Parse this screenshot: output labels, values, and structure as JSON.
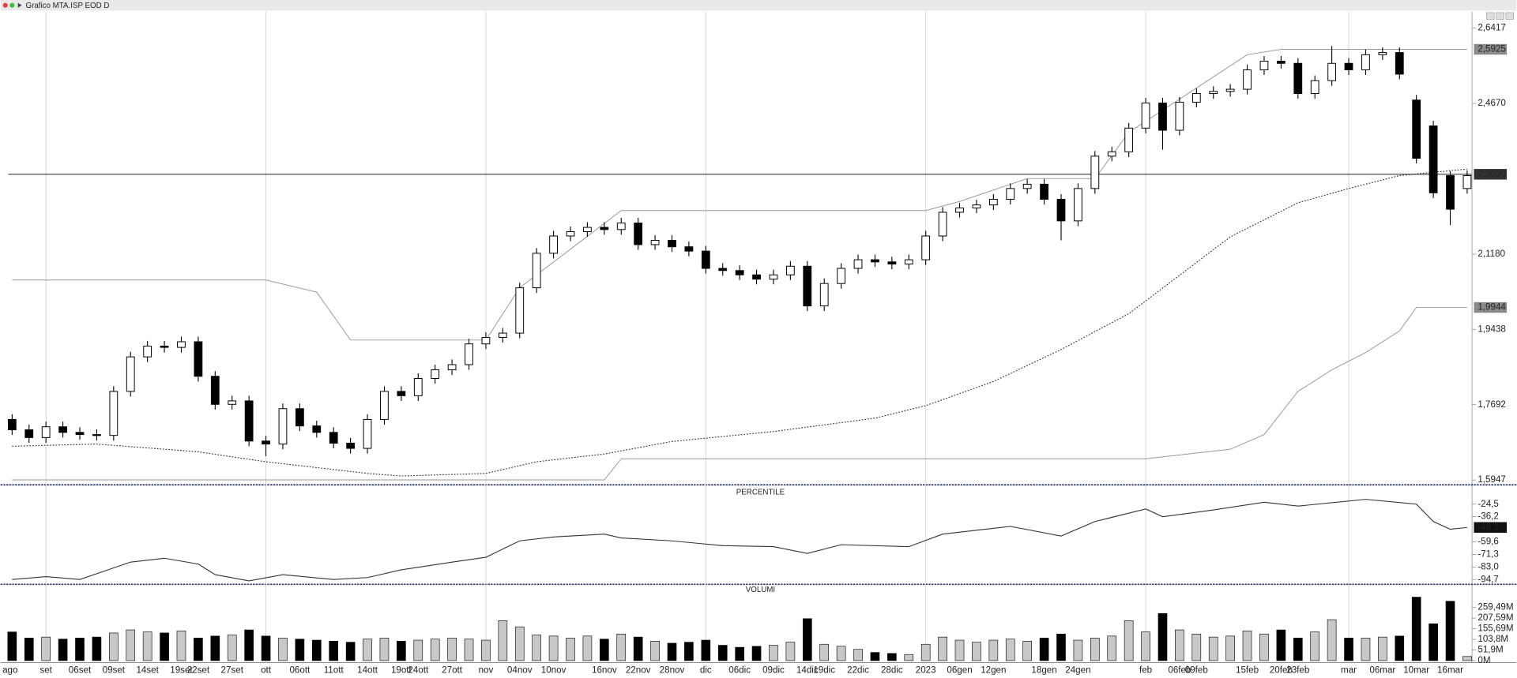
{
  "chart_data": {
    "type": "candlestick",
    "title": "Grafico MTA.ISP EOD D",
    "categories": [
      "ago",
      null,
      "set",
      null,
      "06set",
      null,
      "09set",
      null,
      "14set",
      null,
      "19set",
      "22set",
      null,
      "27set",
      null,
      "ott",
      null,
      "06ott",
      null,
      "11ott",
      null,
      "14ott",
      null,
      "19ott",
      "24ott",
      null,
      "27ott",
      null,
      "nov",
      null,
      "04nov",
      null,
      "10nov",
      null,
      null,
      "16nov",
      null,
      "22nov",
      null,
      "28nov",
      null,
      "dic",
      null,
      "06dic",
      null,
      "09dic",
      null,
      "14dic",
      "19dic",
      null,
      "22dic",
      null,
      "28dic",
      null,
      "2023",
      null,
      "06gen",
      null,
      "12gen",
      null,
      null,
      "18gen",
      null,
      "24gen",
      null,
      null,
      null,
      "feb",
      null,
      "06feb",
      "09feb",
      null,
      null,
      "15feb",
      null,
      "20feb",
      "23feb",
      null,
      null,
      "mar",
      null,
      "06mar",
      null,
      "10mar",
      null,
      "16mar",
      null
    ],
    "open": [
      1.735,
      1.711,
      1.693,
      1.718,
      1.705,
      1.7,
      1.698,
      1.8,
      1.88,
      1.905,
      1.902,
      1.915,
      1.835,
      1.77,
      1.778,
      1.685,
      1.678,
      1.76,
      1.72,
      1.705,
      1.68,
      1.668,
      1.735,
      1.8,
      1.79,
      1.83,
      1.85,
      1.862,
      1.91,
      1.925,
      1.935,
      2.04,
      2.12,
      2.16,
      2.17,
      2.18,
      2.175,
      2.19,
      2.14,
      2.15,
      2.135,
      2.125,
      2.085,
      2.08,
      2.07,
      2.06,
      2.07,
      2.09,
      1.998,
      2.05,
      2.085,
      2.105,
      2.1,
      2.095,
      2.105,
      2.16,
      2.215,
      2.225,
      2.232,
      2.245,
      2.27,
      2.28,
      2.245,
      2.195,
      2.27,
      2.345,
      2.355,
      2.41,
      2.468,
      2.405,
      2.47,
      2.49,
      2.495,
      2.5,
      2.545,
      2.565,
      2.56,
      2.49,
      2.52,
      2.56,
      2.545,
      2.58,
      2.585,
      2.475,
      2.415,
      2.3,
      2.27
    ],
    "high": [
      1.747,
      1.723,
      1.73,
      1.73,
      1.717,
      1.712,
      1.812,
      1.892,
      1.917,
      1.917,
      1.927,
      1.927,
      1.847,
      1.79,
      1.79,
      1.697,
      1.772,
      1.772,
      1.732,
      1.717,
      1.692,
      1.747,
      1.812,
      1.812,
      1.842,
      1.862,
      1.874,
      1.922,
      1.937,
      1.947,
      2.052,
      2.132,
      2.172,
      2.182,
      2.192,
      2.192,
      2.202,
      2.202,
      2.162,
      2.162,
      2.147,
      2.137,
      2.097,
      2.092,
      2.082,
      2.082,
      2.102,
      2.102,
      2.062,
      2.097,
      2.117,
      2.117,
      2.112,
      2.117,
      2.172,
      2.227,
      2.237,
      2.244,
      2.257,
      2.282,
      2.292,
      2.292,
      2.257,
      2.282,
      2.357,
      2.367,
      2.422,
      2.48,
      2.48,
      2.482,
      2.502,
      2.507,
      2.512,
      2.557,
      2.577,
      2.577,
      2.572,
      2.532,
      2.6,
      2.572,
      2.592,
      2.597,
      2.597,
      2.487,
      2.427,
      2.31,
      2.312
    ],
    "low": [
      1.699,
      1.681,
      1.681,
      1.693,
      1.688,
      1.686,
      1.686,
      1.788,
      1.868,
      1.89,
      1.89,
      1.823,
      1.758,
      1.758,
      1.673,
      1.65,
      1.666,
      1.708,
      1.693,
      1.668,
      1.656,
      1.656,
      1.723,
      1.778,
      1.778,
      1.818,
      1.838,
      1.85,
      1.898,
      1.913,
      1.923,
      2.028,
      2.108,
      2.148,
      2.158,
      2.163,
      2.163,
      2.128,
      2.128,
      2.123,
      2.113,
      2.073,
      2.068,
      2.058,
      2.048,
      2.048,
      2.058,
      1.986,
      1.986,
      2.038,
      2.073,
      2.088,
      2.083,
      2.083,
      2.093,
      2.148,
      2.203,
      2.213,
      2.22,
      2.233,
      2.258,
      2.233,
      2.15,
      2.183,
      2.258,
      2.333,
      2.343,
      2.398,
      2.36,
      2.393,
      2.458,
      2.478,
      2.483,
      2.488,
      2.533,
      2.548,
      2.478,
      2.478,
      2.508,
      2.533,
      2.533,
      2.568,
      2.523,
      2.328,
      2.248,
      2.185,
      2.258
    ],
    "close": [
      1.711,
      1.693,
      1.718,
      1.705,
      1.7,
      1.698,
      1.8,
      1.88,
      1.905,
      1.902,
      1.915,
      1.835,
      1.77,
      1.778,
      1.685,
      1.678,
      1.76,
      1.72,
      1.705,
      1.68,
      1.668,
      1.735,
      1.8,
      1.79,
      1.83,
      1.85,
      1.862,
      1.91,
      1.925,
      1.935,
      2.04,
      2.12,
      2.16,
      2.17,
      2.18,
      2.175,
      2.19,
      2.14,
      2.15,
      2.135,
      2.125,
      2.085,
      2.08,
      2.07,
      2.06,
      2.07,
      2.09,
      1.998,
      2.05,
      2.085,
      2.105,
      2.1,
      2.095,
      2.105,
      2.16,
      2.215,
      2.225,
      2.232,
      2.245,
      2.27,
      2.28,
      2.245,
      2.195,
      2.27,
      2.345,
      2.355,
      2.41,
      2.468,
      2.405,
      2.47,
      2.49,
      2.495,
      2.5,
      2.545,
      2.565,
      2.56,
      2.49,
      2.52,
      2.56,
      2.545,
      2.58,
      2.585,
      2.535,
      2.34,
      2.26,
      2.222,
      2.3
    ],
    "up_color": "#ffffff",
    "down_color": "#000000",
    "ylim": [
      1.588,
      2.662
    ],
    "yticks": [
      {
        "value": 2.6417,
        "label": "2,6417"
      },
      {
        "value": 2.467,
        "label": "2,4670"
      },
      {
        "value": 2.118,
        "label": "2,1180"
      },
      {
        "value": 1.9438,
        "label": "1,9438"
      },
      {
        "value": 1.7692,
        "label": "1,7692"
      },
      {
        "value": 1.5947,
        "label": "1,5947"
      }
    ],
    "price_line": {
      "value": 2.303,
      "label": "2,3030"
    },
    "level_labels": [
      {
        "value": 2.5925,
        "label": "2,5925"
      },
      {
        "value": 1.9944,
        "label": "1,9944"
      }
    ],
    "bands": [
      {
        "color": "#999999",
        "x": [
          0,
          15,
          18,
          20,
          28,
          30,
          36,
          54,
          56,
          60,
          64,
          66,
          73,
          75,
          86
        ],
        "values": [
          2.058,
          2.058,
          2.03,
          1.919,
          1.919,
          2.04,
          2.219,
          2.219,
          2.24,
          2.293,
          2.293,
          2.4,
          2.58,
          2.5925,
          2.5925
        ]
      },
      {
        "color": "#999999",
        "x": [
          0,
          35,
          36,
          67,
          72,
          74,
          76,
          78,
          80,
          82,
          83,
          86
        ],
        "values": [
          1.595,
          1.595,
          1.644,
          1.644,
          1.666,
          1.7,
          1.8,
          1.85,
          1.89,
          1.94,
          1.9944,
          1.9944
        ]
      }
    ],
    "ma": {
      "color": "#333333",
      "x": [
        0,
        5,
        11,
        15,
        21,
        23,
        28,
        31,
        35,
        39,
        45,
        51,
        54,
        58,
        62,
        66,
        69,
        72,
        76,
        79,
        82,
        86
      ],
      "values": [
        1.673,
        1.678,
        1.66,
        1.637,
        1.61,
        1.604,
        1.61,
        1.637,
        1.655,
        1.684,
        1.707,
        1.738,
        1.767,
        1.823,
        1.897,
        1.98,
        2.069,
        2.158,
        2.237,
        2.27,
        2.3,
        2.315
      ]
    },
    "percentile": {
      "title": "PERCENTILE",
      "color": "#333333",
      "x": [
        0,
        2,
        4,
        7,
        9,
        11,
        12,
        14,
        16,
        19,
        21,
        23,
        26,
        28,
        30,
        32,
        35,
        36,
        39,
        42,
        45,
        47,
        49,
        53,
        55,
        59,
        62,
        64,
        67,
        68,
        71,
        74,
        76,
        80,
        83,
        84,
        85,
        86
      ],
      "values": [
        -94.7,
        -92.0,
        -94.7,
        -78.5,
        -74.9,
        -80.3,
        -90.2,
        -96.0,
        -90.2,
        -94.7,
        -92.9,
        -85.7,
        -78.5,
        -74.0,
        -58.7,
        -55.1,
        -52.4,
        -56.0,
        -58.7,
        -63.2,
        -64.1,
        -70.4,
        -62.3,
        -64.1,
        -52.4,
        -45.2,
        -54.2,
        -40.7,
        -29.0,
        -36.2,
        -29.9,
        -22.7,
        -26.3,
        -20.0,
        -24.5,
        -40.7,
        -47.9,
        -46.2
      ],
      "ylim": [
        -98.3,
        -18.2
      ],
      "yticks": [
        {
          "value": -24.5,
          "label": "-24,5"
        },
        {
          "value": -36.2,
          "label": "-36,2"
        },
        {
          "value": -59.6,
          "label": "-59,6"
        },
        {
          "value": -71.3,
          "label": "-71,3"
        },
        {
          "value": -83.0,
          "label": "-83,0"
        },
        {
          "value": -94.7,
          "label": "-94,7"
        }
      ],
      "last": {
        "value": -46.2,
        "label": "-46,2"
      }
    },
    "volume": {
      "title": "VOLUMI",
      "up_color": "#c8c8c8",
      "down_color": "#000000",
      "values": [
        140,
        110,
        115,
        105,
        110,
        115,
        135,
        150,
        140,
        135,
        145,
        110,
        120,
        125,
        150,
        120,
        110,
        105,
        100,
        95,
        90,
        105,
        110,
        95,
        100,
        105,
        110,
        105,
        100,
        195,
        165,
        125,
        120,
        110,
        120,
        105,
        130,
        115,
        95,
        85,
        90,
        100,
        75,
        65,
        70,
        75,
        90,
        205,
        80,
        70,
        55,
        40,
        35,
        30,
        80,
        115,
        100,
        90,
        100,
        105,
        95,
        110,
        130,
        100,
        110,
        120,
        195,
        140,
        230,
        150,
        130,
        115,
        120,
        145,
        130,
        150,
        110,
        140,
        200,
        110,
        110,
        115,
        120,
        310,
        180,
        290,
        20
      ],
      "ylim": [
        0,
        316
      ],
      "yticks": [
        {
          "value": 259.49,
          "label": "259,49M"
        },
        {
          "value": 207.59,
          "label": "207,59M"
        },
        {
          "value": 155.69,
          "label": "155,69M"
        },
        {
          "value": 103.8,
          "label": "103,8M"
        },
        {
          "value": 51.9,
          "label": "51,9M"
        },
        {
          "value": 0,
          "label": "0M"
        }
      ]
    }
  }
}
